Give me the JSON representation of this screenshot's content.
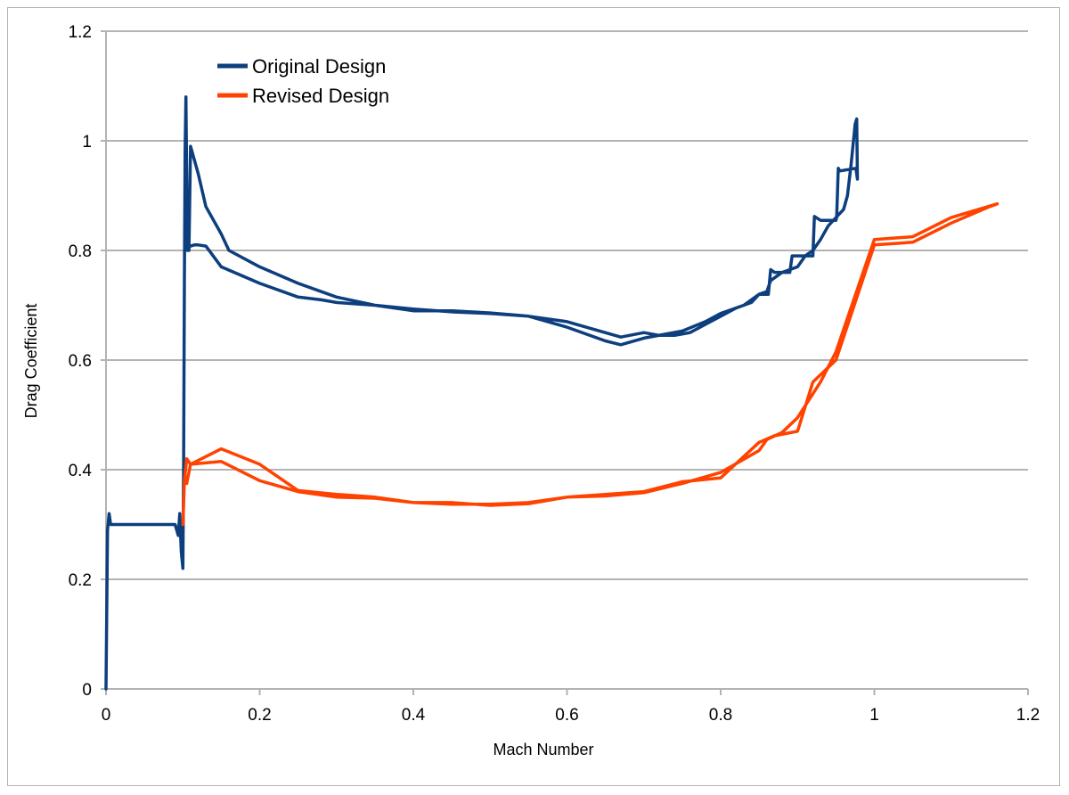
{
  "chart_data": {
    "type": "line",
    "title": "",
    "xlabel": "Mach Number",
    "ylabel": "Drag Coefficient",
    "xlim": [
      0,
      1.2
    ],
    "ylim": [
      0,
      1.2
    ],
    "x_ticks": [
      "0",
      "0.2",
      "0.4",
      "0.6",
      "0.8",
      "1",
      "1.2"
    ],
    "y_ticks": [
      "0",
      "0.2",
      "0.4",
      "0.6",
      "0.8",
      "1",
      "1.2"
    ],
    "grid": "horizontal",
    "legend_position": "top-left",
    "series": [
      {
        "name": "Original Design",
        "color": "#0d3f7e",
        "points": [
          [
            0.0,
            0.0
          ],
          [
            0.002,
            0.29
          ],
          [
            0.004,
            0.32
          ],
          [
            0.006,
            0.3
          ],
          [
            0.008,
            0.3
          ],
          [
            0.05,
            0.3
          ],
          [
            0.09,
            0.3
          ],
          [
            0.094,
            0.28
          ],
          [
            0.096,
            0.32
          ],
          [
            0.098,
            0.25
          ],
          [
            0.1,
            0.22
          ],
          [
            0.101,
            0.4
          ],
          [
            0.102,
            0.75
          ],
          [
            0.103,
            0.98
          ],
          [
            0.104,
            1.08
          ],
          [
            0.105,
            0.92
          ],
          [
            0.106,
            0.8
          ],
          [
            0.107,
            0.86
          ],
          [
            0.108,
            0.8
          ],
          [
            0.11,
            0.99
          ],
          [
            0.12,
            0.94
          ],
          [
            0.13,
            0.88
          ],
          [
            0.15,
            0.83
          ],
          [
            0.16,
            0.8
          ],
          [
            0.2,
            0.77
          ],
          [
            0.25,
            0.74
          ],
          [
            0.3,
            0.715
          ],
          [
            0.35,
            0.7
          ],
          [
            0.4,
            0.693
          ],
          [
            0.45,
            0.688
          ],
          [
            0.5,
            0.685
          ],
          [
            0.55,
            0.68
          ],
          [
            0.6,
            0.66
          ],
          [
            0.65,
            0.635
          ],
          [
            0.67,
            0.628
          ],
          [
            0.7,
            0.64
          ],
          [
            0.75,
            0.653
          ],
          [
            0.78,
            0.67
          ],
          [
            0.8,
            0.685
          ],
          [
            0.83,
            0.7
          ],
          [
            0.85,
            0.72
          ],
          [
            0.86,
            0.725
          ],
          [
            0.865,
            0.745
          ],
          [
            0.88,
            0.76
          ],
          [
            0.9,
            0.77
          ],
          [
            0.91,
            0.79
          ],
          [
            0.92,
            0.8
          ],
          [
            0.93,
            0.82
          ],
          [
            0.94,
            0.845
          ],
          [
            0.95,
            0.86
          ],
          [
            0.96,
            0.875
          ],
          [
            0.965,
            0.9
          ],
          [
            0.97,
            0.96
          ],
          [
            0.975,
            1.03
          ],
          [
            0.977,
            1.04
          ],
          [
            0.978,
            0.93
          ]
        ],
        "return_points": [
          [
            0.978,
            0.93
          ],
          [
            0.976,
            0.95
          ],
          [
            0.955,
            0.945
          ],
          [
            0.953,
            0.95
          ],
          [
            0.951,
            0.86
          ],
          [
            0.95,
            0.855
          ],
          [
            0.93,
            0.855
          ],
          [
            0.922,
            0.862
          ],
          [
            0.92,
            0.79
          ],
          [
            0.9,
            0.79
          ],
          [
            0.893,
            0.79
          ],
          [
            0.89,
            0.76
          ],
          [
            0.87,
            0.76
          ],
          [
            0.865,
            0.765
          ],
          [
            0.862,
            0.72
          ],
          [
            0.85,
            0.72
          ],
          [
            0.84,
            0.705
          ],
          [
            0.82,
            0.695
          ],
          [
            0.8,
            0.68
          ],
          [
            0.78,
            0.665
          ],
          [
            0.76,
            0.65
          ],
          [
            0.74,
            0.645
          ],
          [
            0.72,
            0.645
          ],
          [
            0.7,
            0.65
          ],
          [
            0.67,
            0.642
          ],
          [
            0.6,
            0.67
          ],
          [
            0.55,
            0.68
          ],
          [
            0.5,
            0.686
          ],
          [
            0.45,
            0.69
          ],
          [
            0.4,
            0.69
          ],
          [
            0.35,
            0.7
          ],
          [
            0.3,
            0.705
          ],
          [
            0.28,
            0.71
          ],
          [
            0.25,
            0.715
          ],
          [
            0.2,
            0.74
          ],
          [
            0.15,
            0.77
          ],
          [
            0.13,
            0.808
          ],
          [
            0.12,
            0.81
          ],
          [
            0.115,
            0.81
          ],
          [
            0.11,
            0.808
          ],
          [
            0.107,
            0.805
          ],
          [
            0.105,
            0.81
          ]
        ]
      },
      {
        "name": "Revised Design",
        "color": "#ff4200",
        "points": [
          [
            0.1,
            0.3
          ],
          [
            0.102,
            0.38
          ],
          [
            0.105,
            0.42
          ],
          [
            0.11,
            0.41
          ],
          [
            0.15,
            0.415
          ],
          [
            0.2,
            0.38
          ],
          [
            0.25,
            0.36
          ],
          [
            0.3,
            0.35
          ],
          [
            0.35,
            0.348
          ],
          [
            0.4,
            0.34
          ],
          [
            0.45,
            0.337
          ],
          [
            0.5,
            0.337
          ],
          [
            0.55,
            0.34
          ],
          [
            0.6,
            0.35
          ],
          [
            0.65,
            0.355
          ],
          [
            0.7,
            0.36
          ],
          [
            0.75,
            0.378
          ],
          [
            0.8,
            0.385
          ],
          [
            0.85,
            0.45
          ],
          [
            0.87,
            0.462
          ],
          [
            0.9,
            0.47
          ],
          [
            0.92,
            0.56
          ],
          [
            0.95,
            0.6
          ],
          [
            1.0,
            0.81
          ],
          [
            1.05,
            0.815
          ],
          [
            1.1,
            0.85
          ],
          [
            1.15,
            0.88
          ],
          [
            1.16,
            0.885
          ]
        ],
        "return_points": [
          [
            1.16,
            0.885
          ],
          [
            1.1,
            0.86
          ],
          [
            1.05,
            0.825
          ],
          [
            1.0,
            0.82
          ],
          [
            0.95,
            0.615
          ],
          [
            0.93,
            0.56
          ],
          [
            0.9,
            0.495
          ],
          [
            0.88,
            0.468
          ],
          [
            0.86,
            0.455
          ],
          [
            0.85,
            0.435
          ],
          [
            0.8,
            0.395
          ],
          [
            0.75,
            0.375
          ],
          [
            0.7,
            0.358
          ],
          [
            0.65,
            0.352
          ],
          [
            0.6,
            0.35
          ],
          [
            0.55,
            0.338
          ],
          [
            0.5,
            0.335
          ],
          [
            0.45,
            0.34
          ],
          [
            0.4,
            0.34
          ],
          [
            0.35,
            0.35
          ],
          [
            0.3,
            0.355
          ],
          [
            0.25,
            0.362
          ],
          [
            0.2,
            0.41
          ],
          [
            0.15,
            0.438
          ],
          [
            0.11,
            0.41
          ],
          [
            0.105,
            0.375
          ]
        ]
      }
    ]
  }
}
